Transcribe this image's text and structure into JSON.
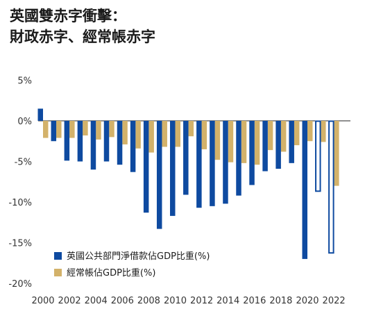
{
  "title_line1": "英國雙赤字衝擊：",
  "title_line2": "財政赤字、經常帳赤字",
  "colors": {
    "net_borrowing": "#0e4aa0",
    "current_account": "#d3b26a",
    "zero_line": "#222222"
  },
  "chart_data": {
    "type": "bar",
    "categories": [
      "2000",
      "2001",
      "2002",
      "2003",
      "2004",
      "2005",
      "2006",
      "2007",
      "2008",
      "2009",
      "2010",
      "2011",
      "2012",
      "2013",
      "2014",
      "2015",
      "2016",
      "2017",
      "2018",
      "2019",
      "2020",
      "2021",
      "2022"
    ],
    "x_tick_labels": [
      "2000",
      "2002",
      "2004",
      "2006",
      "2008",
      "2010",
      "2012",
      "2014",
      "2016",
      "2018",
      "2020",
      "2022"
    ],
    "y_tick_labels": [
      "5%",
      "0%",
      "-5%",
      "-10%",
      "-15%",
      "-20%"
    ],
    "ylim": [
      -20,
      5
    ],
    "yticks": [
      5,
      0,
      -5,
      -10,
      -15,
      -20
    ],
    "series": [
      {
        "name": "英國公共部門淨借款佔GDP比重(%)",
        "values": [
          1.5,
          -2.5,
          -4.9,
          -5.0,
          -6.0,
          -5.0,
          -5.4,
          -6.3,
          -11.3,
          -13.3,
          -11.7,
          -9.1,
          -10.7,
          -10.5,
          -10.2,
          -9.2,
          -7.9,
          -6.2,
          -5.9,
          -5.2,
          -17.0,
          -8.7,
          -16.3
        ],
        "projected": [
          false,
          false,
          false,
          false,
          false,
          false,
          false,
          false,
          false,
          false,
          false,
          false,
          false,
          false,
          false,
          false,
          false,
          false,
          false,
          false,
          false,
          true,
          true
        ]
      },
      {
        "name": "經常帳佔GDP比重(%)",
        "values": [
          -2.1,
          -2.1,
          -2.1,
          -1.8,
          -2.3,
          -2.0,
          -2.9,
          -3.4,
          -3.9,
          -3.2,
          -3.2,
          -1.9,
          -3.5,
          -4.8,
          -5.1,
          -5.2,
          -5.4,
          -3.6,
          -3.8,
          -3.0,
          -2.5,
          -2.6,
          -8.0
        ],
        "projected": [
          false,
          false,
          false,
          false,
          false,
          false,
          false,
          false,
          false,
          false,
          false,
          false,
          false,
          false,
          false,
          false,
          false,
          false,
          false,
          false,
          false,
          true,
          true
        ]
      }
    ]
  }
}
